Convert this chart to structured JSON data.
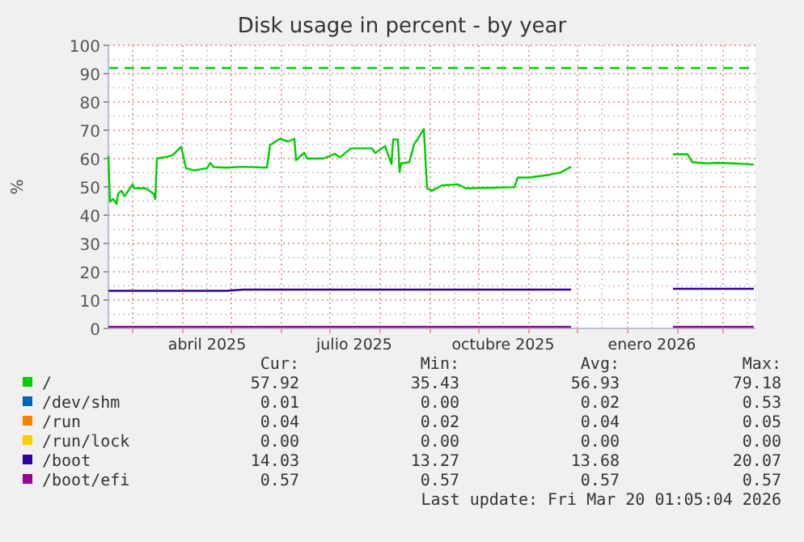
{
  "chart_data": {
    "type": "line",
    "title": "Disk usage in percent - by year",
    "ylabel": "%",
    "x": [
      "2025-02-14",
      "2025-02-15",
      "2025-02-17",
      "2025-02-19",
      "2025-02-20",
      "2025-02-22",
      "2025-02-24",
      "2025-03-01",
      "2025-03-02",
      "2025-03-09",
      "2025-03-14",
      "2025-03-15",
      "2025-03-16",
      "2025-03-22",
      "2025-03-26",
      "2025-03-31",
      "2025-04-03",
      "2025-04-08",
      "2025-04-16",
      "2025-04-18",
      "2025-04-20",
      "2025-04-28",
      "2025-05-08",
      "2025-05-23",
      "2025-05-25",
      "2025-05-31",
      "2025-06-05",
      "2025-06-09",
      "2025-06-10",
      "2025-06-15",
      "2025-06-17",
      "2025-06-27",
      "2025-07-04",
      "2025-07-07",
      "2025-07-14",
      "2025-07-27",
      "2025-07-29",
      "2025-08-04",
      "2025-08-08",
      "2025-08-09",
      "2025-08-12",
      "2025-08-13",
      "2025-08-14",
      "2025-08-19",
      "2025-08-22",
      "2025-08-24",
      "2025-08-28",
      "2025-08-30",
      "2025-09-02",
      "2025-09-08",
      "2025-09-18",
      "2025-09-23",
      "2025-10-23",
      "2025-10-25",
      "2025-11-01",
      "2025-11-14",
      "2025-11-21",
      "2025-11-27",
      "2025-12-15",
      "2026-01-29",
      "2026-02-07",
      "2026-02-10",
      "2026-02-19",
      "2026-02-25",
      "2026-03-07",
      "2026-03-14",
      "2026-03-20"
    ],
    "series": [
      {
        "name": "/",
        "color": "#00cc00",
        "values": [
          61,
          44.8,
          45.7,
          44,
          47.6,
          48.6,
          46.7,
          50.9,
          49.5,
          49.5,
          47.6,
          45.7,
          60,
          60.6,
          61.3,
          64.2,
          56.6,
          55.8,
          56.6,
          58.5,
          57,
          56.8,
          57.1,
          56.8,
          64.8,
          67,
          66,
          67,
          59.4,
          62,
          60,
          60,
          61.7,
          60.4,
          63.6,
          63.6,
          61.9,
          64.4,
          58.1,
          66.7,
          66.7,
          55.2,
          58.3,
          58.7,
          65.1,
          66.7,
          70.5,
          49.5,
          48.6,
          50.5,
          50.9,
          49.5,
          49.9,
          53.3,
          53.3,
          54.3,
          55.2,
          57.1,
          null,
          61.5,
          61.5,
          58.7,
          58.3,
          58.5,
          58.3,
          58.1,
          57.9
        ]
      },
      {
        "name": "/dev/shm",
        "color": "#0066b3",
        "values": [
          null,
          null,
          null,
          null,
          null,
          null,
          null,
          null,
          null,
          null,
          null,
          null,
          null,
          null,
          null,
          null,
          null,
          null,
          null,
          null,
          null,
          null,
          null,
          null,
          null,
          null,
          null,
          null,
          null,
          null,
          null,
          null,
          null,
          null,
          null,
          null,
          null,
          null,
          null,
          null,
          null,
          null,
          null,
          null,
          null,
          null,
          null,
          null,
          null,
          null,
          null,
          null,
          null,
          null,
          null,
          null,
          null,
          null,
          null,
          null,
          null,
          null,
          null,
          null,
          null,
          null,
          null
        ]
      },
      {
        "name": "/run",
        "color": "#ff8000",
        "values": [
          null,
          null,
          null,
          null,
          null,
          null,
          null,
          null,
          null,
          null,
          null,
          null,
          null,
          null,
          null,
          null,
          null,
          null,
          null,
          null,
          null,
          null,
          null,
          null,
          null,
          null,
          null,
          null,
          null,
          null,
          null,
          null,
          null,
          null,
          null,
          null,
          null,
          null,
          null,
          null,
          null,
          null,
          null,
          null,
          null,
          null,
          null,
          null,
          null,
          null,
          null,
          null,
          null,
          null,
          null,
          null,
          null,
          null,
          null,
          null,
          null,
          null,
          null,
          null,
          null,
          null,
          null
        ]
      },
      {
        "name": "/run/lock",
        "color": "#ffcc00",
        "values": [
          null,
          null,
          null,
          null,
          null,
          null,
          null,
          null,
          null,
          null,
          null,
          null,
          null,
          null,
          null,
          null,
          null,
          null,
          null,
          null,
          null,
          null,
          null,
          null,
          null,
          null,
          null,
          null,
          null,
          null,
          null,
          null,
          null,
          null,
          null,
          null,
          null,
          null,
          null,
          null,
          null,
          null,
          null,
          null,
          null,
          null,
          null,
          null,
          null,
          null,
          null,
          null,
          null,
          null,
          null,
          null,
          null,
          null,
          null,
          null,
          null,
          null,
          null,
          null,
          null,
          null,
          null
        ]
      },
      {
        "name": "/boot",
        "color": "#330099",
        "values": [
          13.3,
          13.3,
          13.3,
          13.3,
          13.3,
          13.3,
          13.3,
          13.3,
          13.3,
          13.3,
          13.3,
          13.3,
          13.3,
          13.3,
          13.3,
          13.3,
          13.3,
          13.3,
          13.3,
          13.3,
          13.3,
          13.3,
          13.7,
          13.7,
          13.7,
          13.7,
          13.7,
          13.7,
          13.7,
          13.7,
          13.7,
          13.7,
          13.7,
          13.7,
          13.7,
          13.7,
          13.7,
          13.7,
          13.7,
          13.7,
          13.7,
          13.7,
          13.7,
          13.7,
          13.7,
          13.7,
          13.7,
          13.7,
          13.7,
          13.7,
          13.7,
          13.7,
          13.7,
          13.7,
          13.7,
          13.7,
          13.7,
          13.7,
          null,
          14.0,
          14.0,
          14.0,
          14.0,
          14.0,
          14.0,
          14.0,
          14.0
        ]
      },
      {
        "name": "/boot/efi",
        "color": "#990099",
        "values": [
          0.57,
          0.57,
          0.57,
          0.57,
          0.57,
          0.57,
          0.57,
          0.57,
          0.57,
          0.57,
          0.57,
          0.57,
          0.57,
          0.57,
          0.57,
          0.57,
          0.57,
          0.57,
          0.57,
          0.57,
          0.57,
          0.57,
          0.57,
          0.57,
          0.57,
          0.57,
          0.57,
          0.57,
          0.57,
          0.57,
          0.57,
          0.57,
          0.57,
          0.57,
          0.57,
          0.57,
          0.57,
          0.57,
          0.57,
          0.57,
          0.57,
          0.57,
          0.57,
          0.57,
          0.57,
          0.57,
          0.57,
          0.57,
          0.57,
          0.57,
          0.57,
          0.57,
          0.57,
          0.57,
          0.57,
          0.57,
          0.57,
          0.57,
          null,
          0.57,
          0.57,
          0.57,
          0.57,
          0.57,
          0.57,
          0.57,
          0.57
        ]
      }
    ],
    "xlim": [
      "2025-02-14",
      "2026-03-21"
    ],
    "xticks": [
      {
        "value": "2025-03-01",
        "label": null
      },
      {
        "value": "2025-04-01",
        "label": null
      },
      {
        "value": "2025-04-16",
        "label": "abril 2025"
      },
      {
        "value": "2025-05-01",
        "label": null
      },
      {
        "value": "2025-06-01",
        "label": null
      },
      {
        "value": "2025-07-01",
        "label": null
      },
      {
        "value": "2025-07-16",
        "label": "julio 2025"
      },
      {
        "value": "2025-08-01",
        "label": null
      },
      {
        "value": "2025-09-01",
        "label": null
      },
      {
        "value": "2025-10-01",
        "label": null
      },
      {
        "value": "2025-10-16",
        "label": "octubre 2025"
      },
      {
        "value": "2025-11-01",
        "label": null
      },
      {
        "value": "2025-12-01",
        "label": null
      },
      {
        "value": "2026-01-01",
        "label": null
      },
      {
        "value": "2026-01-16",
        "label": "enero 2026"
      },
      {
        "value": "2026-02-01",
        "label": null
      },
      {
        "value": "2026-03-01",
        "label": null
      }
    ],
    "ylim": [
      0,
      100
    ],
    "yticks": [
      0,
      10,
      20,
      30,
      40,
      50,
      60,
      70,
      80,
      90,
      100
    ],
    "grid": true,
    "legend": "bottom",
    "line_style": "solid",
    "marker": "none",
    "ref_lines": [
      {
        "axis": "y",
        "value": 92,
        "color": "#00cc00",
        "line_style": "dashed"
      }
    ],
    "annotations": [
      "Cur:",
      "Min:",
      "Avg:",
      "Max:",
      "57.92",
      "35.43",
      "56.93",
      "79.18",
      "0.01",
      "0.00",
      "0.02",
      "0.53",
      "0.04",
      "0.02",
      "0.04",
      "0.05",
      "0.00",
      "0.00",
      "0.00",
      "0.00",
      "14.03",
      "13.27",
      "13.68",
      "20.07",
      "0.57",
      "0.57",
      "0.57",
      "0.57",
      "Last update: Fri Mar 20 01:05:04 2026"
    ]
  }
}
